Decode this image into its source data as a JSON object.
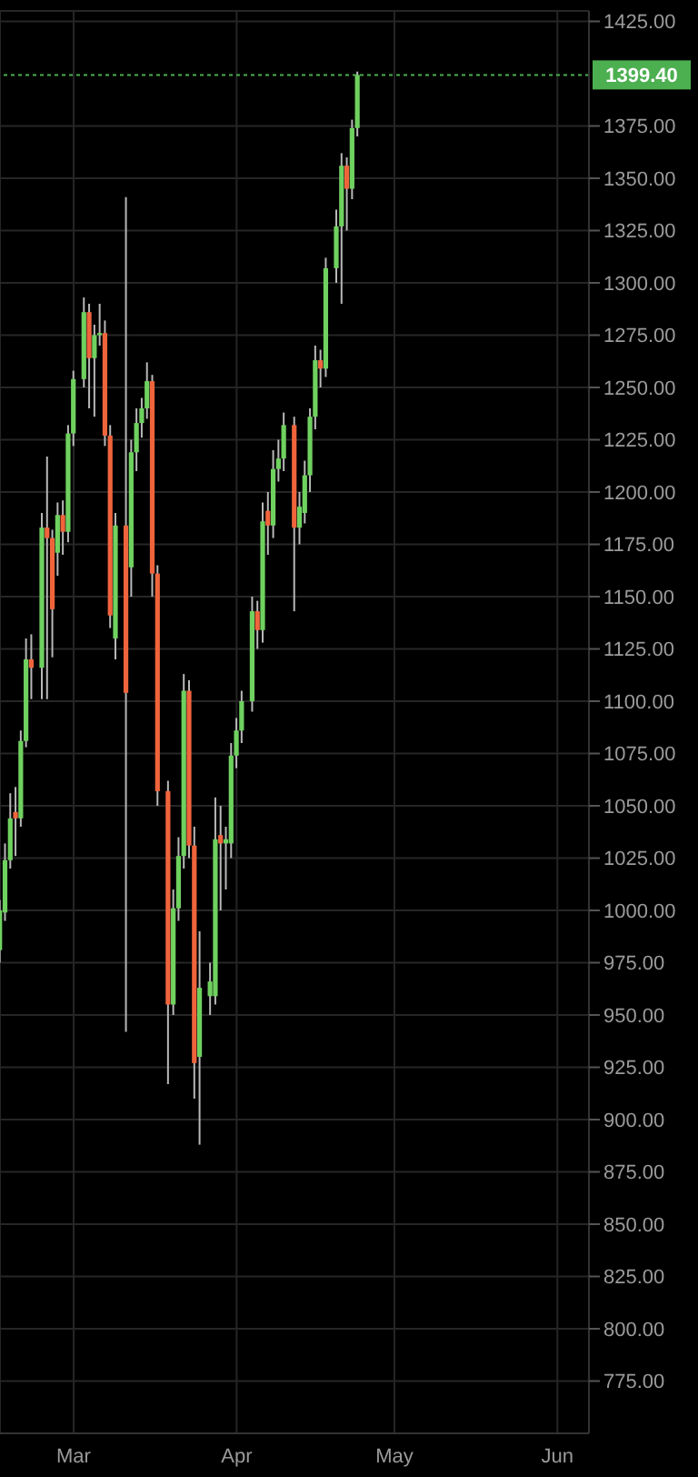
{
  "chart_data": {
    "type": "candlestick",
    "x": [
      "--02-15",
      "--02-16",
      "--02-17",
      "--02-18",
      "--02-19",
      "--02-20",
      "--02-21",
      "--02-23",
      "--02-24",
      "--02-25",
      "--02-26",
      "--02-27",
      "--02-28",
      "--03-01",
      "--03-03",
      "--03-04",
      "--03-05",
      "--03-06",
      "--03-07",
      "--03-08",
      "--03-09",
      "--03-11",
      "--03-12",
      "--03-13",
      "--03-14",
      "--03-15",
      "--03-16",
      "--03-17",
      "--03-19",
      "--03-20",
      "--03-21",
      "--03-22",
      "--03-23",
      "--03-24",
      "--03-25",
      "--03-27",
      "--03-28",
      "--03-29",
      "--03-30",
      "--03-31",
      "--04-01",
      "--04-02",
      "--04-04",
      "--04-05",
      "--04-06",
      "--04-07",
      "--04-08",
      "--04-09",
      "--04-10",
      "--04-12",
      "--04-13",
      "--04-14",
      "--04-15",
      "--04-16",
      "--04-17",
      "--04-18",
      "--04-20",
      "--04-21",
      "--04-22",
      "--04-23",
      "--04-24"
    ],
    "ohlc": [
      [
        981,
        1005,
        975,
        1000
      ],
      [
        999,
        1032,
        995,
        1024
      ],
      [
        1024,
        1056,
        1020,
        1044
      ],
      [
        1047,
        1059,
        1026,
        1044
      ],
      [
        1044,
        1086,
        1040,
        1081
      ],
      [
        1081,
        1130,
        1078,
        1120
      ],
      [
        1120,
        1132,
        1101,
        1116
      ],
      [
        1116,
        1190,
        1101,
        1183
      ],
      [
        1183,
        1217,
        1101,
        1178
      ],
      [
        1178,
        1182,
        1121,
        1144
      ],
      [
        1171,
        1195,
        1160,
        1189
      ],
      [
        1189,
        1196,
        1170,
        1181
      ],
      [
        1181,
        1232,
        1176,
        1228
      ],
      [
        1228,
        1258,
        1222,
        1254
      ],
      [
        1254,
        1293,
        1250,
        1286
      ],
      [
        1286,
        1290,
        1240,
        1264
      ],
      [
        1264,
        1280,
        1236,
        1275
      ],
      [
        1275,
        1290,
        1270,
        1276
      ],
      [
        1276,
        1282,
        1222,
        1227
      ],
      [
        1227,
        1232,
        1135,
        1141
      ],
      [
        1130,
        1190,
        1120,
        1184
      ],
      [
        1184,
        1341,
        942,
        1104
      ],
      [
        1164,
        1225,
        1150,
        1219
      ],
      [
        1219,
        1240,
        1210,
        1233
      ],
      [
        1233,
        1245,
        1226,
        1240
      ],
      [
        1240,
        1262,
        1235,
        1253
      ],
      [
        1253,
        1256,
        1150,
        1161
      ],
      [
        1161,
        1165,
        1050,
        1057
      ],
      [
        1057,
        1062,
        917,
        955
      ],
      [
        955,
        1010,
        950,
        1001
      ],
      [
        1001,
        1035,
        995,
        1026
      ],
      [
        1026,
        1113,
        1020,
        1105
      ],
      [
        1105,
        1110,
        1025,
        1031
      ],
      [
        1031,
        1040,
        910,
        927
      ],
      [
        930,
        990,
        888,
        963
      ],
      [
        959,
        975,
        950,
        966
      ],
      [
        959,
        1054,
        955,
        1034
      ],
      [
        1036,
        1050,
        1000,
        1032
      ],
      [
        1032,
        1040,
        1010,
        1034
      ],
      [
        1032,
        1080,
        1025,
        1074
      ],
      [
        1074,
        1092,
        1068,
        1086
      ],
      [
        1086,
        1105,
        1080,
        1100
      ],
      [
        1100,
        1150,
        1095,
        1143
      ],
      [
        1143,
        1148,
        1125,
        1134
      ],
      [
        1134,
        1195,
        1128,
        1186
      ],
      [
        1191,
        1200,
        1170,
        1184
      ],
      [
        1184,
        1220,
        1178,
        1211
      ],
      [
        1211,
        1225,
        1205,
        1216
      ],
      [
        1216,
        1238,
        1210,
        1232
      ],
      [
        1232,
        1236,
        1143,
        1183
      ],
      [
        1183,
        1200,
        1175,
        1193
      ],
      [
        1190,
        1215,
        1185,
        1208
      ],
      [
        1208,
        1240,
        1200,
        1236
      ],
      [
        1236,
        1270,
        1230,
        1263
      ],
      [
        1263,
        1268,
        1250,
        1259
      ],
      [
        1259,
        1312,
        1255,
        1307
      ],
      [
        1307,
        1335,
        1300,
        1327
      ],
      [
        1327,
        1362,
        1290,
        1356
      ],
      [
        1356,
        1360,
        1325,
        1345
      ],
      [
        1345,
        1378,
        1340,
        1374
      ],
      [
        1374,
        1401,
        1370,
        1399.4
      ]
    ],
    "colors": [
      "#6fd15f",
      "#6fd15f",
      "#6fd15f",
      "#f0643c",
      "#6fd15f",
      "#6fd15f",
      "#f0643c",
      "#6fd15f",
      "#f0643c",
      "#f0643c",
      "#6fd15f",
      "#f0643c",
      "#6fd15f",
      "#6fd15f",
      "#6fd15f",
      "#f0643c",
      "#6fd15f",
      "#6fd15f",
      "#f0643c",
      "#f0643c",
      "#6fd15f",
      "#f0643c",
      "#6fd15f",
      "#6fd15f",
      "#6fd15f",
      "#6fd15f",
      "#f0643c",
      "#f0643c",
      "#f0643c",
      "#6fd15f",
      "#6fd15f",
      "#6fd15f",
      "#f0643c",
      "#f0643c",
      "#6fd15f",
      "#6fd15f",
      "#6fd15f",
      "#f0643c",
      "#6fd15f",
      "#6fd15f",
      "#6fd15f",
      "#6fd15f",
      "#6fd15f",
      "#f0643c",
      "#6fd15f",
      "#f0643c",
      "#6fd15f",
      "#6fd15f",
      "#6fd15f",
      "#f0643c",
      "#6fd15f",
      "#6fd15f",
      "#6fd15f",
      "#6fd15f",
      "#f0643c",
      "#6fd15f",
      "#6fd15f",
      "#6fd15f",
      "#f0643c",
      "#6fd15f",
      "#6fd15f"
    ],
    "xlim": [
      "--02-15",
      "--06-07"
    ],
    "xticks": [
      {
        "value": "--03-01",
        "label": "Mar"
      },
      {
        "value": "--04-01",
        "label": "Apr"
      },
      {
        "value": "--05-01",
        "label": "May"
      },
      {
        "value": "--06-01",
        "label": "Jun"
      }
    ],
    "ylim": [
      750,
      1430
    ],
    "yticks": [
      {
        "value": 775,
        "label": "775.00"
      },
      {
        "value": 800,
        "label": "800.00"
      },
      {
        "value": 825,
        "label": "825.00"
      },
      {
        "value": 850,
        "label": "850.00"
      },
      {
        "value": 875,
        "label": "875.00"
      },
      {
        "value": 900,
        "label": "900.00"
      },
      {
        "value": 925,
        "label": "925.00"
      },
      {
        "value": 950,
        "label": "950.00"
      },
      {
        "value": 975,
        "label": "975.00"
      },
      {
        "value": 1000,
        "label": "1000.00"
      },
      {
        "value": 1025,
        "label": "1025.00"
      },
      {
        "value": 1050,
        "label": "1050.00"
      },
      {
        "value": 1075,
        "label": "1075.00"
      },
      {
        "value": 1100,
        "label": "1100.00"
      },
      {
        "value": 1125,
        "label": "1125.00"
      },
      {
        "value": 1150,
        "label": "1150.00"
      },
      {
        "value": 1175,
        "label": "1175.00"
      },
      {
        "value": 1200,
        "label": "1200.00"
      },
      {
        "value": 1225,
        "label": "1225.00"
      },
      {
        "value": 1250,
        "label": "1250.00"
      },
      {
        "value": 1275,
        "label": "1275.00"
      },
      {
        "value": 1300,
        "label": "1300.00"
      },
      {
        "value": 1325,
        "label": "1325.00"
      },
      {
        "value": 1350,
        "label": "1350.00"
      },
      {
        "value": 1375,
        "label": "1375.00"
      },
      {
        "value": 1425,
        "label": "1425.00"
      }
    ],
    "ref_lines": [
      {
        "axis": "y",
        "value": 1399.4,
        "label": "1399.40",
        "color": "#4caf50",
        "line_style": "dotted"
      }
    ],
    "grid": true
  }
}
